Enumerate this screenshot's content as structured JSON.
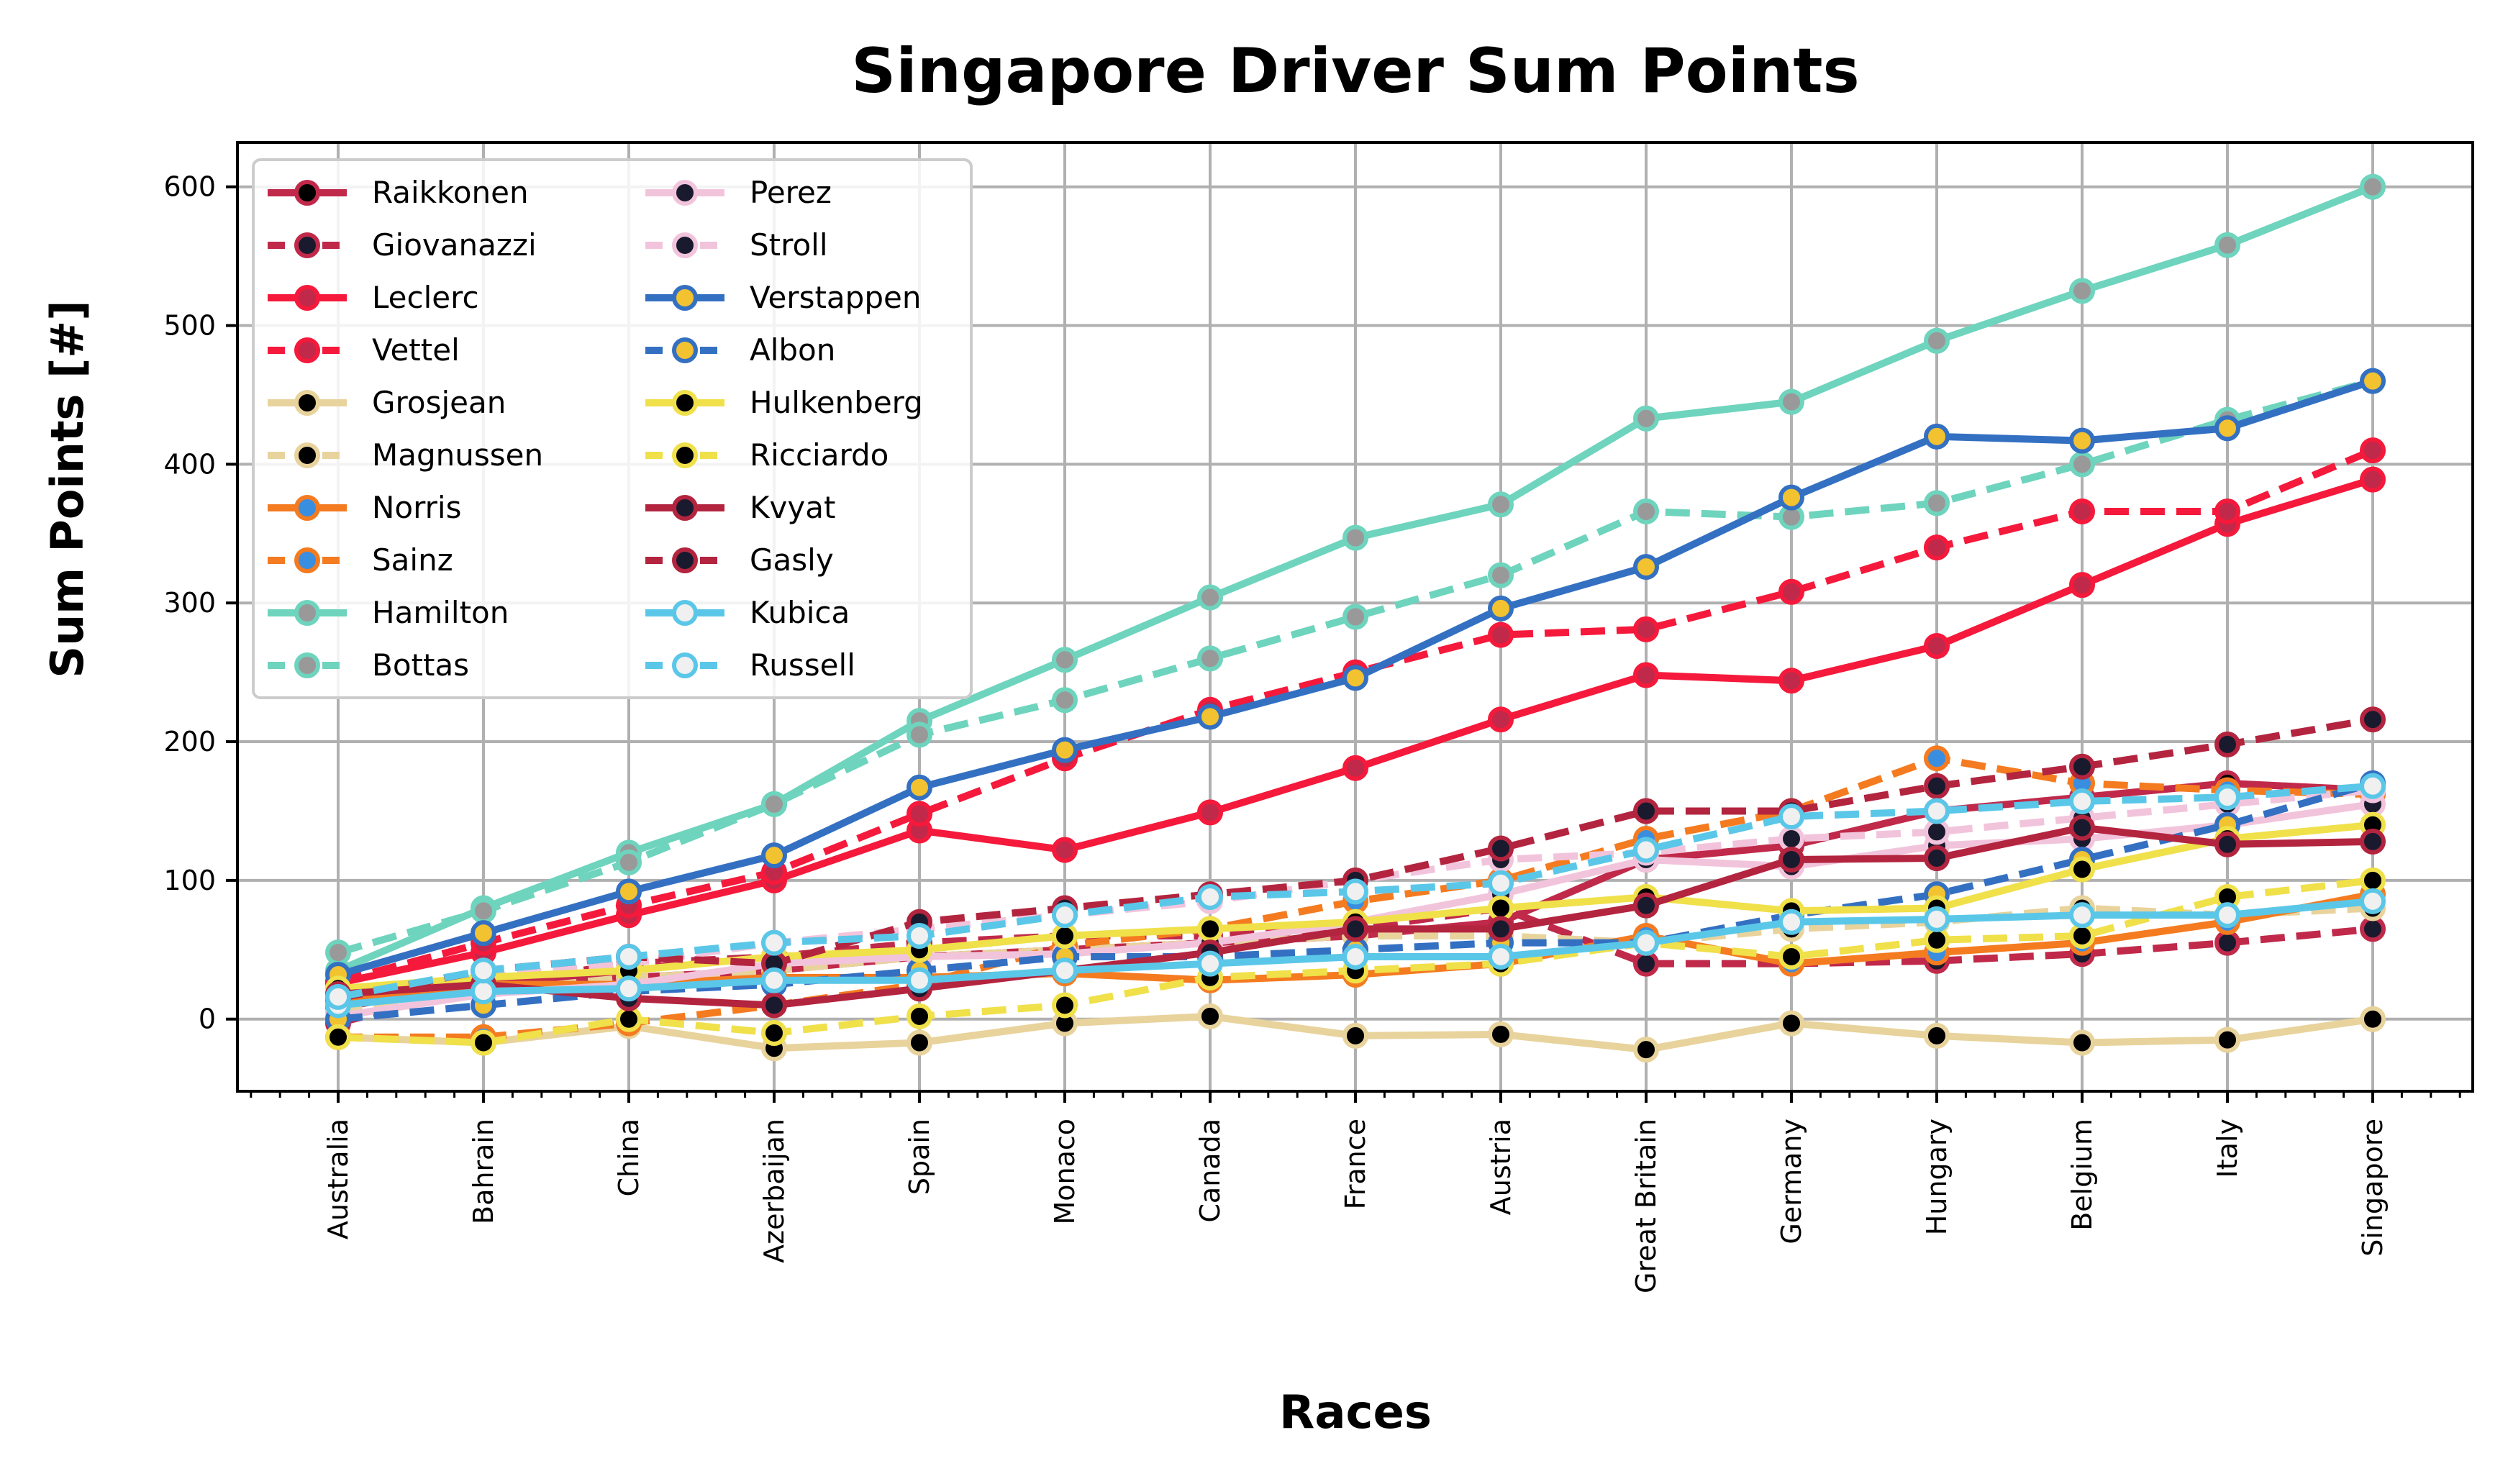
{
  "chart_data": {
    "type": "line",
    "title": "Singapore Driver Sum Points",
    "xlabel": "Races",
    "ylabel": "Sum Points [#]",
    "categories": [
      "Australia",
      "Bahrain",
      "China",
      "Azerbaijan",
      "Spain",
      "Monaco",
      "Canada",
      "France",
      "Austria",
      "Great Britain",
      "Germany",
      "Hungary",
      "Belgium",
      "Italy",
      "Singapore"
    ],
    "ylim": [
      -52,
      632
    ],
    "yticks": [
      0,
      100,
      200,
      300,
      400,
      500,
      600
    ],
    "grid": true,
    "legend_position": "top-left",
    "series": [
      {
        "name": "Raikkonen",
        "color": "#c0294a",
        "marker": "#000000",
        "dash": "solid",
        "values": [
          8,
          27,
          30,
          35,
          45,
          50,
          55,
          60,
          70,
          115,
          125,
          150,
          160,
          170,
          165
        ]
      },
      {
        "name": "Giovanazzi",
        "color": "#c0294a",
        "marker": "#1a1a2e",
        "dash": "dashed",
        "values": [
          -3,
          25,
          40,
          45,
          55,
          60,
          60,
          65,
          80,
          40,
          40,
          42,
          47,
          55,
          65
        ]
      },
      {
        "name": "Leclerc",
        "color": "#f5193b",
        "marker": "#c0294a",
        "dash": "solid",
        "values": [
          26,
          48,
          75,
          100,
          136,
          122,
          149,
          181,
          216,
          248,
          244,
          269,
          313,
          357,
          389
        ]
      },
      {
        "name": "Vettel",
        "color": "#f5193b",
        "marker": "#c0294a",
        "dash": "dashed",
        "values": [
          27,
          55,
          82,
          106,
          148,
          188,
          223,
          250,
          277,
          281,
          308,
          340,
          366,
          366,
          410
        ]
      },
      {
        "name": "Grosjean",
        "color": "#e8d39c",
        "marker": "#000000",
        "dash": "solid",
        "values": [
          -13,
          -17,
          -5,
          -21,
          -17,
          -3,
          2,
          -12,
          -11,
          -22,
          -3,
          -12,
          -17,
          -15,
          0
        ]
      },
      {
        "name": "Magnussen",
        "color": "#e8d39c",
        "marker": "#000000",
        "dash": "dashed",
        "values": [
          5,
          20,
          30,
          35,
          45,
          50,
          55,
          60,
          60,
          55,
          65,
          70,
          80,
          75,
          80
        ]
      },
      {
        "name": "Norris",
        "color": "#f47b20",
        "marker": "#3a8ee0",
        "dash": "solid",
        "values": [
          12,
          25,
          25,
          30,
          30,
          33,
          28,
          32,
          40,
          60,
          40,
          48,
          55,
          70,
          90
        ]
      },
      {
        "name": "Sainz",
        "color": "#f47b20",
        "marker": "#3a8ee0",
        "dash": "dashed",
        "values": [
          -13,
          -13,
          -3,
          10,
          25,
          53,
          65,
          85,
          100,
          130,
          150,
          188,
          170,
          165,
          162
        ]
      },
      {
        "name": "Hamilton",
        "color": "#6ed4bd",
        "marker": "#999999",
        "dash": "solid",
        "values": [
          35,
          80,
          120,
          155,
          215,
          259,
          304,
          347,
          371,
          433,
          445,
          489,
          525,
          558,
          600
        ]
      },
      {
        "name": "Bottas",
        "color": "#6ed4bd",
        "marker": "#999999",
        "dash": "dashed",
        "values": [
          48,
          78,
          113,
          155,
          205,
          230,
          260,
          290,
          320,
          366,
          362,
          372,
          400,
          432,
          460
        ]
      },
      {
        "name": "Perez",
        "color": "#f2c4dc",
        "marker": "#1a1a2e",
        "dash": "solid",
        "values": [
          2,
          18,
          25,
          40,
          45,
          47,
          55,
          70,
          90,
          115,
          110,
          125,
          130,
          140,
          155
        ]
      },
      {
        "name": "Stroll",
        "color": "#f2c4dc",
        "marker": "#1a1a2e",
        "dash": "dashed",
        "values": [
          20,
          30,
          40,
          55,
          65,
          75,
          85,
          100,
          115,
          120,
          130,
          135,
          145,
          155,
          165
        ]
      },
      {
        "name": "Verstappen",
        "color": "#3470c2",
        "marker": "#f2c230",
        "dash": "solid",
        "values": [
          32,
          62,
          92,
          118,
          167,
          194,
          218,
          246,
          296,
          326,
          376,
          420,
          417,
          426,
          460
        ]
      },
      {
        "name": "Albon",
        "color": "#3470c2",
        "marker": "#f2c230",
        "dash": "dashed",
        "values": [
          0,
          10,
          20,
          25,
          35,
          45,
          45,
          50,
          55,
          55,
          75,
          90,
          115,
          140,
          170
        ]
      },
      {
        "name": "Hulkenberg",
        "color": "#f0e04a",
        "marker": "#000000",
        "dash": "solid",
        "values": [
          22,
          30,
          35,
          45,
          50,
          60,
          65,
          70,
          80,
          88,
          78,
          80,
          108,
          130,
          140
        ]
      },
      {
        "name": "Ricciardo",
        "color": "#f0e04a",
        "marker": "#000000",
        "dash": "dashed",
        "values": [
          -13,
          -17,
          0,
          -10,
          2,
          10,
          30,
          35,
          40,
          55,
          45,
          57,
          60,
          88,
          100
        ]
      },
      {
        "name": "Kvyat",
        "color": "#b3243f",
        "marker": "#1a1a2e",
        "dash": "solid",
        "values": [
          18,
          25,
          15,
          10,
          22,
          35,
          48,
          65,
          65,
          82,
          115,
          116,
          138,
          126,
          128
        ]
      },
      {
        "name": "Gasly",
        "color": "#b3243f",
        "marker": "#1a1a2e",
        "dash": "dashed",
        "values": [
          15,
          35,
          45,
          40,
          70,
          80,
          90,
          100,
          123,
          150,
          150,
          168,
          182,
          198,
          216
        ]
      },
      {
        "name": "Kubica",
        "color": "#5bc7e8",
        "marker": "#f0f0f0",
        "dash": "solid",
        "values": [
          10,
          20,
          22,
          28,
          28,
          35,
          40,
          45,
          45,
          55,
          70,
          72,
          75,
          75,
          85
        ]
      },
      {
        "name": "Russell",
        "color": "#5bc7e8",
        "marker": "#f0f0f0",
        "dash": "dashed",
        "values": [
          16,
          35,
          45,
          55,
          60,
          75,
          88,
          92,
          98,
          122,
          146,
          150,
          157,
          160,
          168
        ]
      }
    ]
  }
}
